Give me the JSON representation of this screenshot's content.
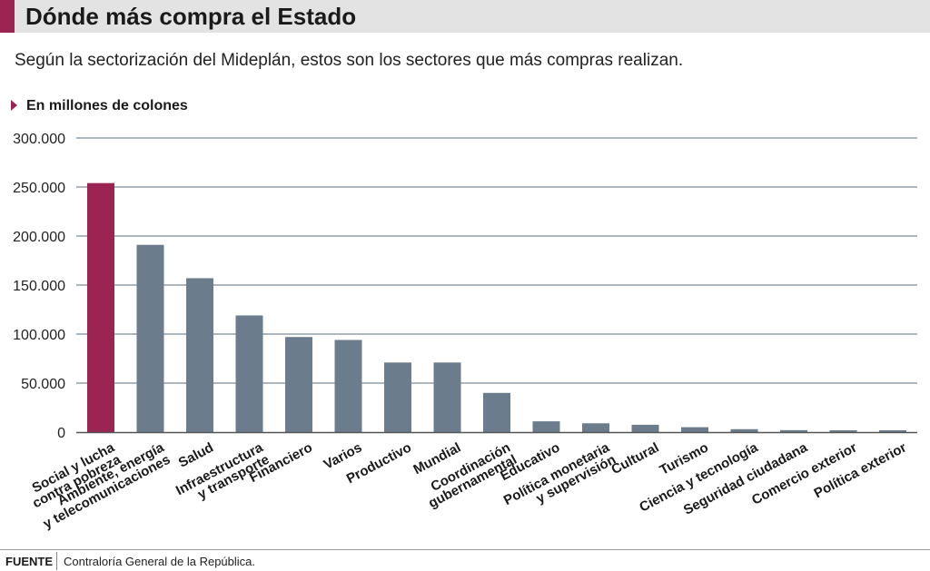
{
  "title": "Dónde más compra el Estado",
  "subtitle": "Según la sectorización del Mideplán, estos son los sectores que más compras realizan.",
  "unit_label": "En millones de colones",
  "source": {
    "label": "FUENTE",
    "text": "Contraloría General de la República."
  },
  "colors": {
    "accent": "#9b2452",
    "bar": "#6b7d8c",
    "grid": "#7a8c99"
  },
  "chart_data": {
    "type": "bar",
    "ylim": [
      0,
      300000
    ],
    "yticks": [
      0,
      50000,
      100000,
      150000,
      200000,
      250000,
      300000
    ],
    "ytick_labels": [
      "0",
      "50.000",
      "100.000",
      "150.000",
      "200.000",
      "250.000",
      "300.000"
    ],
    "grid": true,
    "highlight_index": 0,
    "categories": [
      [
        "Social y lucha",
        "contra pobreza"
      ],
      [
        "Ambiente, energía",
        "y telecomunicaciones"
      ],
      [
        "Salud"
      ],
      [
        "Infraestructura",
        "y transporte"
      ],
      [
        "Financiero"
      ],
      [
        "Varios"
      ],
      [
        "Productivo"
      ],
      [
        "Mundial"
      ],
      [
        "Coordinación",
        "gubernamental"
      ],
      [
        "Educativo"
      ],
      [
        "Política monetaria",
        "y supervisión"
      ],
      [
        "Cultural"
      ],
      [
        "Turismo"
      ],
      [
        "Ciencia y tecnología"
      ],
      [
        "Seguridad ciudadana"
      ],
      [
        "Comercio exterior"
      ],
      [
        "Política exterior"
      ]
    ],
    "values": [
      254000,
      191000,
      157000,
      119000,
      97000,
      94000,
      71000,
      71000,
      40000,
      11000,
      9000,
      7500,
      5000,
      3000,
      2000,
      1500,
      500
    ]
  }
}
